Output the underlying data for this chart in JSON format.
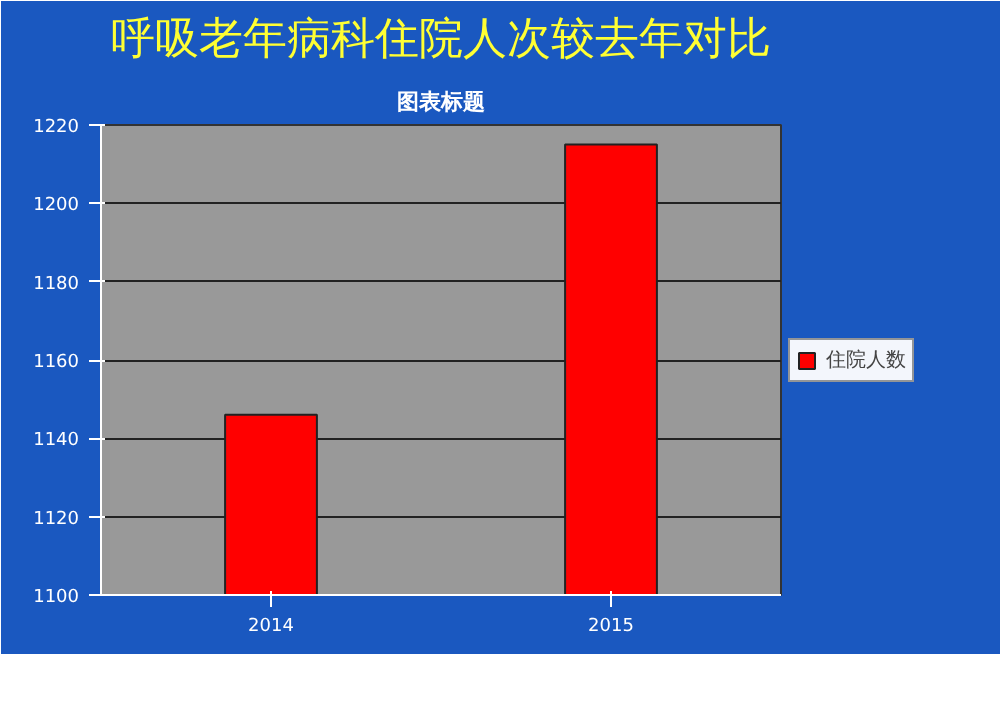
{
  "chart_data": {
    "type": "bar",
    "title": "呼吸老年病科住院人次较去年对比",
    "subtitle": "图表标题",
    "categories": [
      "2014",
      "2015"
    ],
    "series": [
      {
        "name": "住院人数",
        "color": "#ff0000",
        "values": [
          1146,
          1215
        ]
      }
    ],
    "ylim": [
      1100,
      1220
    ],
    "yticks": [
      1100,
      1120,
      1140,
      1160,
      1180,
      1200,
      1220
    ],
    "grid": "y",
    "legend": "right"
  }
}
